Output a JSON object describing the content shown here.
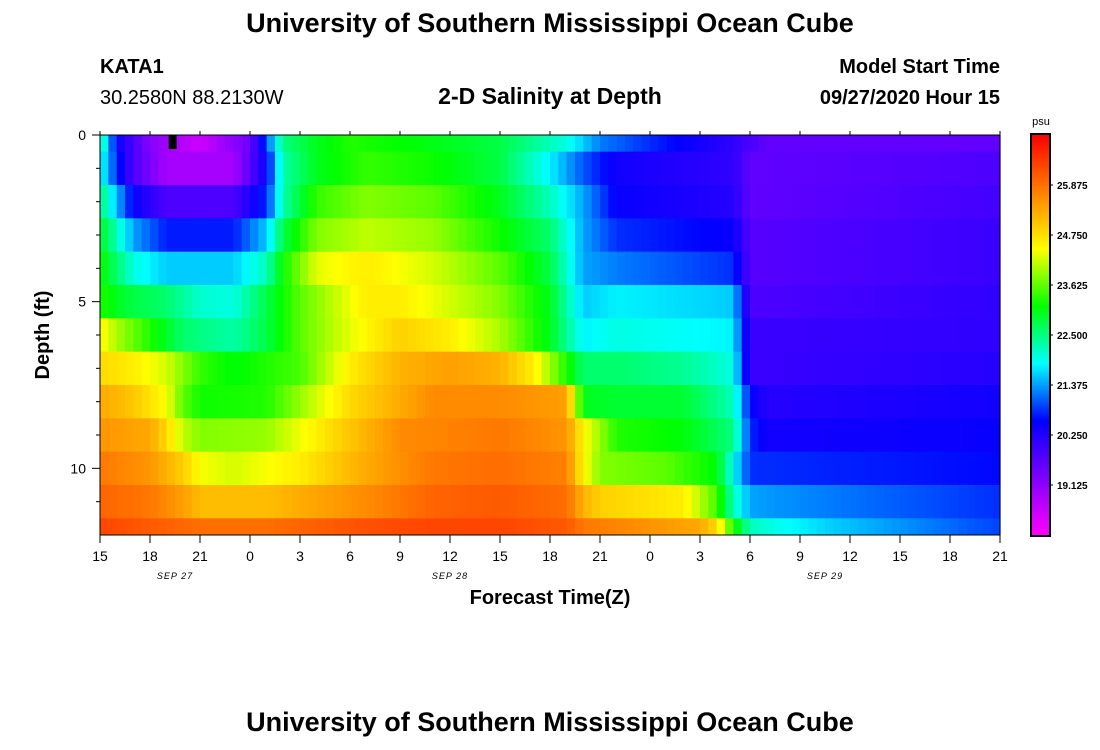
{
  "header": {
    "title": "University of Southern Mississippi Ocean Cube",
    "footer_title": "University of Southern Mississippi Ocean Cube",
    "station_id": "KATA1",
    "station_coords": "30.2580N 88.2130W",
    "model_start_label": "Model Start Time",
    "model_start_value": "09/27/2020 Hour 15"
  },
  "chart_data": {
    "type": "heatmap",
    "title": "2-D Salinity at Depth",
    "xlabel": "Forecast Time(Z)",
    "ylabel": "Depth (ft)",
    "x_tick_labels": [
      "15",
      "18",
      "21",
      "0",
      "3",
      "6",
      "9",
      "12",
      "15",
      "18",
      "21",
      "0",
      "3",
      "6",
      "9",
      "12",
      "15",
      "18",
      "21"
    ],
    "x_hours": [
      0,
      54
    ],
    "date_labels": [
      {
        "label": "SEP 27",
        "hour": 4.5
      },
      {
        "label": "SEP 28",
        "hour": 21
      },
      {
        "label": "SEP 29",
        "hour": 43.5
      }
    ],
    "y_tick_labels": [
      "0",
      "5",
      "10"
    ],
    "y_major_ticks": [
      0,
      5,
      10
    ],
    "y_minor_ticks": [
      1,
      2,
      3,
      4,
      6,
      7,
      8,
      9,
      11
    ],
    "ylim": [
      0,
      12
    ],
    "depth_levels": [
      0,
      1,
      2,
      3,
      4,
      5,
      6,
      7,
      8,
      9,
      10,
      11,
      12
    ],
    "colorbar": {
      "unit": "psu",
      "min": 18.0,
      "max": 27.0,
      "tick_labels": [
        "25.875",
        "24.750",
        "23.625",
        "22.500",
        "21.375",
        "20.250",
        "19.125"
      ],
      "tick_values": [
        25.875,
        24.75,
        23.625,
        22.5,
        21.375,
        20.25,
        19.125
      ]
    },
    "marker": {
      "hour": 4,
      "depth": 0.3
    },
    "series": [
      {
        "name": "0 ft",
        "hours": [
          0,
          0.5,
          1,
          3,
          6,
          9,
          10,
          11,
          13,
          15,
          19,
          24,
          28,
          30,
          38,
          40,
          54
        ],
        "values": [
          22.5,
          21.5,
          20.5,
          19.2,
          18.5,
          19.5,
          21.0,
          22.5,
          23.0,
          23.3,
          23.1,
          22.8,
          22.0,
          21.2,
          20.1,
          19.6,
          19.6
        ]
      },
      {
        "name": "1 ft",
        "hours": [
          0,
          1,
          2,
          4,
          8,
          10,
          11,
          13,
          16,
          20,
          24,
          27,
          29,
          31,
          38,
          39,
          54
        ],
        "values": [
          22.0,
          20.8,
          19.8,
          18.9,
          18.9,
          20.5,
          22.3,
          23.0,
          23.4,
          23.2,
          22.8,
          21.8,
          21.0,
          20.4,
          20.1,
          19.6,
          19.8
        ]
      },
      {
        "name": "2 ft",
        "hours": [
          0,
          1,
          2,
          4,
          8,
          10,
          11,
          13,
          16,
          20,
          24,
          27,
          29,
          31,
          38,
          39,
          54
        ],
        "values": [
          22.6,
          21.5,
          20.5,
          19.8,
          19.8,
          20.8,
          22.3,
          23.4,
          23.8,
          23.6,
          23.0,
          22.2,
          21.4,
          20.5,
          20.2,
          19.6,
          19.9
        ]
      },
      {
        "name": "3 ft",
        "hours": [
          0,
          1,
          2,
          4,
          8,
          10,
          11,
          13,
          16,
          20,
          24,
          27,
          29,
          31,
          38,
          39,
          54
        ],
        "values": [
          23.0,
          22.2,
          21.4,
          20.7,
          20.7,
          21.6,
          22.8,
          23.8,
          24.1,
          23.9,
          23.2,
          22.6,
          21.4,
          20.8,
          20.5,
          19.7,
          20.0
        ]
      },
      {
        "name": "4 ft",
        "hours": [
          0,
          1,
          2,
          4,
          8,
          10,
          11,
          13,
          16,
          20,
          24,
          27,
          29,
          31,
          38,
          39,
          54
        ],
        "values": [
          23.2,
          22.6,
          22.0,
          21.6,
          21.6,
          22.2,
          23.2,
          24.3,
          24.6,
          24.2,
          23.6,
          22.8,
          21.4,
          21.2,
          20.8,
          19.7,
          20.0
        ]
      },
      {
        "name": "5 ft",
        "hours": [
          0,
          1,
          2,
          4,
          6,
          8,
          10,
          12,
          16,
          18,
          24,
          27,
          29,
          31,
          38,
          39,
          54
        ],
        "values": [
          23.3,
          23.0,
          22.8,
          22.6,
          22.1,
          22.0,
          22.8,
          23.6,
          24.6,
          24.6,
          23.8,
          23.0,
          21.6,
          21.8,
          21.6,
          19.8,
          20.1
        ]
      },
      {
        "name": "6 ft",
        "hours": [
          0,
          1,
          3,
          5,
          8,
          10,
          12,
          15,
          18,
          21,
          24,
          27,
          29,
          31,
          38,
          39,
          54
        ],
        "values": [
          24.5,
          24.0,
          23.3,
          22.6,
          22.3,
          22.8,
          23.6,
          24.3,
          24.9,
          24.6,
          24.0,
          23.0,
          21.8,
          22.0,
          21.8,
          20.0,
          20.1
        ]
      },
      {
        "name": "7 ft",
        "hours": [
          0,
          2,
          4,
          6,
          8,
          12,
          15,
          18,
          21,
          24,
          26,
          29,
          31,
          35,
          38,
          39,
          54
        ],
        "values": [
          24.8,
          24.6,
          24.2,
          23.4,
          23.1,
          23.5,
          24.6,
          25.2,
          25.4,
          25.2,
          24.6,
          22.6,
          22.6,
          22.4,
          22.0,
          20.0,
          20.2
        ]
      },
      {
        "name": "8 ft",
        "hours": [
          0,
          2,
          4,
          5,
          6,
          10,
          15,
          20,
          24,
          28,
          29,
          31,
          35,
          38,
          39,
          40,
          54
        ],
        "values": [
          25.3,
          25.0,
          24.4,
          23.6,
          23.2,
          23.3,
          24.8,
          25.6,
          25.6,
          25.4,
          23.0,
          22.9,
          22.9,
          22.2,
          20.6,
          20.2,
          20.4
        ]
      },
      {
        "name": "9 ft",
        "hours": [
          0,
          3,
          4,
          5,
          6,
          10,
          14,
          18,
          24,
          28,
          29,
          31,
          35,
          38,
          39,
          40,
          54
        ],
        "values": [
          25.5,
          25.3,
          24.8,
          24.1,
          23.8,
          23.9,
          24.8,
          25.6,
          25.8,
          25.5,
          24.5,
          23.3,
          23.1,
          22.5,
          20.8,
          20.4,
          20.5
        ]
      },
      {
        "name": "10 ft",
        "hours": [
          0,
          3,
          5,
          6,
          8,
          12,
          16,
          20,
          24,
          28,
          29,
          30,
          34,
          37,
          38,
          39,
          54
        ],
        "values": [
          25.8,
          25.5,
          24.9,
          24.4,
          24.2,
          24.6,
          25.3,
          25.8,
          25.9,
          25.7,
          24.5,
          23.8,
          23.6,
          23.1,
          21.9,
          20.8,
          20.6
        ]
      },
      {
        "name": "11 ft",
        "hours": [
          0,
          3,
          5,
          6,
          10,
          16,
          20,
          24,
          28,
          29,
          30,
          35,
          37,
          38,
          39,
          41,
          54
        ],
        "values": [
          26.0,
          25.8,
          25.4,
          25.1,
          25.1,
          25.6,
          26.0,
          26.1,
          25.9,
          25.2,
          24.9,
          24.6,
          23.5,
          22.2,
          21.4,
          21.3,
          20.8
        ]
      },
      {
        "name": "12 ft",
        "hours": [
          0,
          3,
          6,
          10,
          16,
          20,
          24,
          28,
          29,
          32,
          36,
          37,
          38,
          39,
          41,
          44,
          54
        ],
        "values": [
          26.3,
          26.1,
          25.9,
          25.9,
          26.2,
          26.3,
          26.3,
          26.1,
          25.8,
          25.6,
          25.3,
          24.8,
          23.3,
          22.2,
          21.9,
          21.6,
          20.9
        ]
      }
    ]
  }
}
